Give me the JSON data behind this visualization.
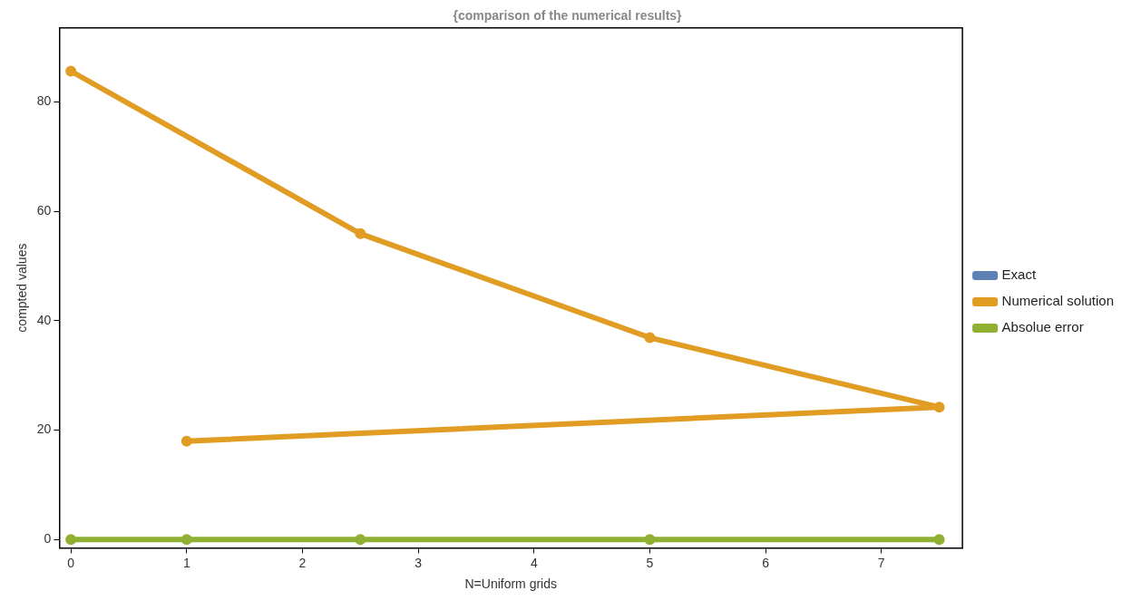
{
  "chart_data": {
    "type": "line",
    "title": "{comparison of the numerical results}",
    "xlabel": "N=Uniform grids",
    "ylabel": "compted values",
    "xlim": [
      -0.1,
      7.7
    ],
    "xticks": [
      0,
      1,
      2,
      3,
      4,
      5,
      6,
      7
    ],
    "ylim": [
      -1.5,
      93.5
    ],
    "yticks": [
      0,
      20,
      40,
      60,
      80
    ],
    "x": [
      0,
      2.5,
      5,
      7.5,
      1
    ],
    "series": [
      {
        "name": "Exact",
        "color": "#5e81b5",
        "values": [
          null,
          null,
          null,
          null,
          null
        ]
      },
      {
        "name": "Numerical solution",
        "color": "#e19c24",
        "values": [
          85.6,
          55.9,
          36.9,
          24.2,
          18.0
        ]
      },
      {
        "name": "Absolue error",
        "color": "#8fb032",
        "values": [
          0,
          0,
          0,
          0,
          0
        ]
      }
    ],
    "grid": false,
    "legend": "right",
    "marker": "circle",
    "line_style": "solid"
  }
}
